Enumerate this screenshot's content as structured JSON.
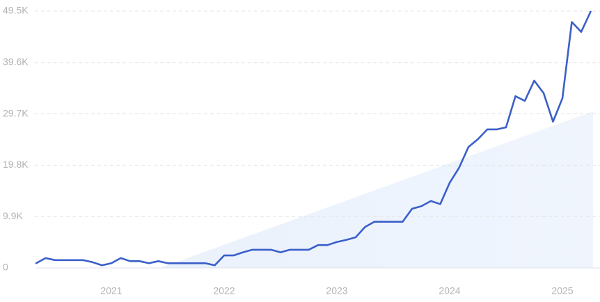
{
  "chart_data": {
    "type": "line",
    "categories": [
      null,
      null,
      null,
      null,
      null,
      null,
      null,
      null,
      "2021",
      null,
      null,
      null,
      null,
      null,
      null,
      null,
      null,
      null,
      null,
      null,
      "2022",
      null,
      null,
      null,
      null,
      null,
      null,
      null,
      null,
      null,
      null,
      null,
      "2023",
      null,
      null,
      null,
      null,
      null,
      null,
      null,
      null,
      null,
      null,
      null,
      "2024",
      null,
      null,
      null,
      null,
      null,
      null,
      null,
      null,
      null,
      null,
      null,
      "2025",
      null,
      null,
      null
    ],
    "series": [
      {
        "color": "#3a5fc9",
        "values": [
          900,
          1900,
          1500,
          1500,
          1500,
          1500,
          1100,
          500,
          900,
          1900,
          1300,
          1300,
          900,
          1300,
          900,
          900,
          900,
          900,
          900,
          500,
          2400,
          2400,
          3000,
          3500,
          3500,
          3500,
          3000,
          3500,
          3500,
          3500,
          4400,
          4400,
          5000,
          5400,
          5900,
          7900,
          8900,
          8900,
          8900,
          8900,
          11400,
          11900,
          12900,
          12300,
          16400,
          19300,
          23300,
          24800,
          26700,
          26700,
          27100,
          33100,
          32200,
          36100,
          33700,
          28200,
          32700,
          47400,
          45500,
          49400
        ]
      }
    ],
    "ylim": [
      0,
      49500
    ],
    "yticks": [
      0,
      {
        "value": 9900,
        "label": "9.9K"
      },
      {
        "value": 19800,
        "label": "19.8K"
      },
      {
        "value": 29700,
        "label": "29.7K"
      },
      {
        "value": 39600,
        "label": "39.6K"
      },
      {
        "value": 49500,
        "label": "49.5K"
      }
    ],
    "grid": true
  }
}
